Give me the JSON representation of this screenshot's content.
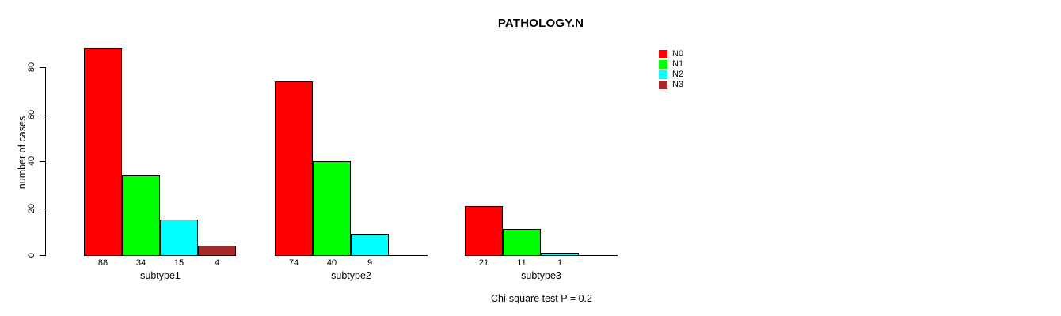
{
  "chart_data": {
    "type": "bar",
    "title": "PATHOLOGY.N",
    "ylabel": "number of cases",
    "xlabel": "",
    "annotation": "Chi-square test P = 0.2",
    "categories": [
      "subtype1",
      "subtype2",
      "subtype3"
    ],
    "series": [
      {
        "name": "N0",
        "color": "#ff0000",
        "values": [
          88,
          74,
          21
        ]
      },
      {
        "name": "N1",
        "color": "#00ff00",
        "values": [
          34,
          40,
          11
        ]
      },
      {
        "name": "N2",
        "color": "#00ffff",
        "values": [
          15,
          9,
          1
        ]
      },
      {
        "name": "N3",
        "color": "#a52a2a",
        "values": [
          4,
          0,
          0
        ]
      }
    ],
    "yticks": [
      0,
      20,
      40,
      60,
      80
    ],
    "ylim": [
      0,
      88
    ],
    "grid": false,
    "legend_position": "top-right",
    "bar_value_labels": true,
    "zero_bars_drawn_as_baseline_segment": true,
    "background_color": "#ffffff",
    "axis_color": "#000000"
  }
}
